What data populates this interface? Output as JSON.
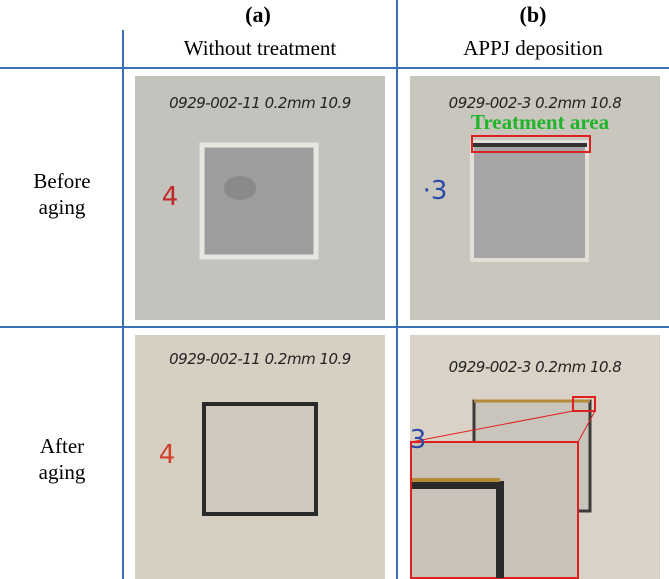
{
  "columns": [
    {
      "label": "(a)",
      "title": "Without treatment"
    },
    {
      "label": "(b)",
      "title": "APPJ deposition"
    }
  ],
  "rows": [
    {
      "label": "Before aging"
    },
    {
      "label": "After aging"
    }
  ],
  "annotation": "Treatment area",
  "photos": [
    {
      "caption": "0929-002-11 0.2mm 10.9",
      "number": "4"
    },
    {
      "caption": "0929-002-3 0.2mm 10.8",
      "number": "·3"
    },
    {
      "caption": "0929-002-11 0.2mm 10.9",
      "number": "4"
    },
    {
      "caption": "0929-002-3 0.2mm 10.8",
      "number": "3"
    }
  ]
}
